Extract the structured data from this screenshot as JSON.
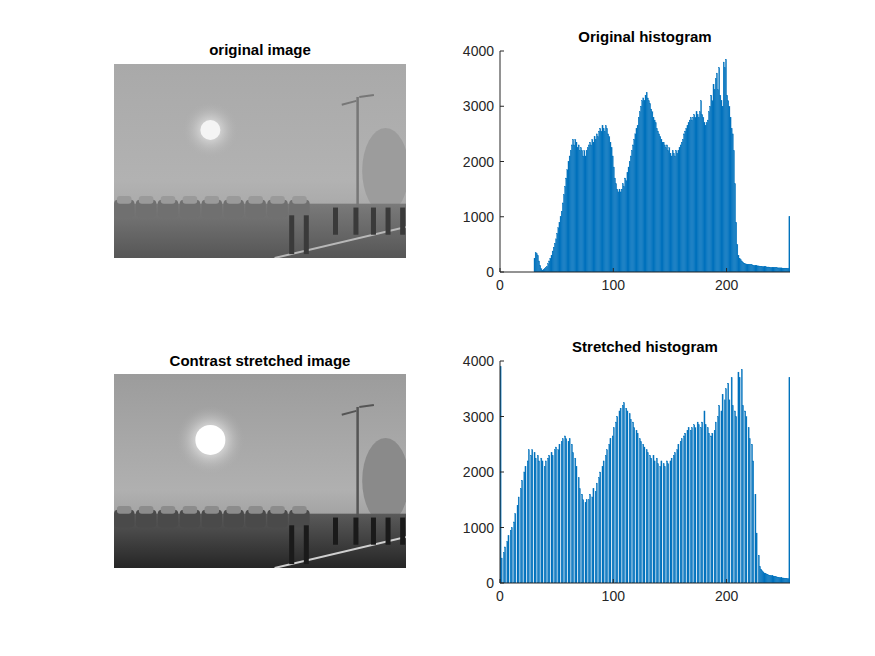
{
  "images": [
    {
      "title": "original image"
    },
    {
      "title": "Contrast stretched image"
    }
  ],
  "chart_data": [
    {
      "type": "histogram",
      "title": "Original histogram",
      "color": "#0072bd",
      "bins": [
        0,
        1,
        2,
        3,
        4,
        5,
        6,
        7,
        8,
        9,
        10,
        11,
        12,
        13,
        14,
        15,
        16,
        17,
        18,
        19,
        20,
        21,
        22,
        23,
        24,
        25,
        26,
        27,
        28,
        29,
        30,
        31,
        32,
        33,
        34,
        35,
        36,
        37,
        38,
        39,
        40,
        41,
        42,
        43,
        44,
        45,
        46,
        47,
        48,
        49,
        50,
        51,
        52,
        53,
        54,
        55,
        56,
        57,
        58,
        59,
        60,
        61,
        62,
        63,
        64,
        65,
        66,
        67,
        68,
        69,
        70,
        71,
        72,
        73,
        74,
        75,
        76,
        77,
        78,
        79,
        80,
        81,
        82,
        83,
        84,
        85,
        86,
        87,
        88,
        89,
        90,
        91,
        92,
        93,
        94,
        95,
        96,
        97,
        98,
        99,
        100,
        101,
        102,
        103,
        104,
        105,
        106,
        107,
        108,
        109,
        110,
        111,
        112,
        113,
        114,
        115,
        116,
        117,
        118,
        119,
        120,
        121,
        122,
        123,
        124,
        125,
        126,
        127,
        128,
        129,
        130,
        131,
        132,
        133,
        134,
        135,
        136,
        137,
        138,
        139,
        140,
        141,
        142,
        143,
        144,
        145,
        146,
        147,
        148,
        149,
        150,
        151,
        152,
        153,
        154,
        155,
        156,
        157,
        158,
        159,
        160,
        161,
        162,
        163,
        164,
        165,
        166,
        167,
        168,
        169,
        170,
        171,
        172,
        173,
        174,
        175,
        176,
        177,
        178,
        179,
        180,
        181,
        182,
        183,
        184,
        185,
        186,
        187,
        188,
        189,
        190,
        191,
        192,
        193,
        194,
        195,
        196,
        197,
        198,
        199,
        200,
        201,
        202,
        203,
        204,
        205,
        206,
        207,
        208,
        209,
        210,
        211,
        212,
        213,
        214,
        215,
        216,
        217,
        218,
        219,
        220,
        221,
        222,
        223,
        224,
        225,
        226,
        227,
        228,
        229,
        230,
        231,
        232,
        233,
        234,
        235,
        236,
        237,
        238,
        239,
        240,
        241,
        242,
        243,
        244,
        245,
        246,
        247,
        248,
        249,
        250,
        251,
        252,
        253,
        254,
        255,
        256
      ],
      "values": [
        0,
        0,
        0,
        0,
        0,
        0,
        0,
        0,
        0,
        0,
        0,
        0,
        0,
        0,
        0,
        0,
        0,
        0,
        0,
        0,
        0,
        0,
        0,
        0,
        0,
        0,
        0,
        0,
        0,
        0,
        250,
        350,
        330,
        300,
        200,
        120,
        60,
        30,
        40,
        60,
        80,
        100,
        150,
        200,
        250,
        300,
        380,
        450,
        520,
        600,
        700,
        800,
        900,
        1000,
        1100,
        1250,
        1400,
        1550,
        1700,
        1850,
        2000,
        2100,
        2200,
        2300,
        2400,
        2300,
        2400,
        2350,
        2250,
        2300,
        2200,
        2250,
        2200,
        2100,
        2200,
        2100,
        2200,
        2250,
        2300,
        2350,
        2300,
        2400,
        2350,
        2450,
        2400,
        2500,
        2450,
        2550,
        2600,
        2550,
        2650,
        2600,
        2550,
        2650,
        2600,
        2500,
        2450,
        2350,
        2250,
        2100,
        1900,
        1700,
        1600,
        1500,
        1450,
        1500,
        1450,
        1500,
        1600,
        1550,
        1700,
        1650,
        1800,
        1900,
        2000,
        2100,
        2200,
        2300,
        2400,
        2500,
        2600,
        2650,
        2800,
        2900,
        3000,
        3100,
        3150,
        3100,
        3200,
        3250,
        3150,
        3100,
        3050,
        2950,
        2900,
        2800,
        2750,
        2700,
        2600,
        2550,
        2500,
        2450,
        2400,
        2350,
        2350,
        2300,
        2250,
        2300,
        2200,
        2250,
        2150,
        2100,
        2200,
        2150,
        2100,
        2200,
        2150,
        2200,
        2250,
        2300,
        2350,
        2400,
        2500,
        2550,
        2600,
        2650,
        2700,
        2750,
        2800,
        2750,
        2800,
        2850,
        2800,
        2900,
        2850,
        2800,
        2900,
        3100,
        2850,
        2800,
        2700,
        2650,
        2700,
        2750,
        2900,
        3000,
        3200,
        3100,
        3400,
        3300,
        3500,
        3600,
        3300,
        3700,
        3200,
        3100,
        3000,
        3800,
        3700,
        3850,
        3200,
        3100,
        3000,
        2800,
        2600,
        2500,
        2200,
        1600,
        900,
        500,
        300,
        250,
        220,
        200,
        180,
        160,
        150,
        145,
        140,
        140,
        135,
        130,
        130,
        125,
        120,
        120,
        115,
        110,
        110,
        105,
        105,
        100,
        100,
        95,
        95,
        90,
        90,
        90,
        85,
        85,
        85,
        80,
        80,
        80,
        80,
        75,
        75,
        75,
        75,
        70,
        70,
        70,
        70,
        70,
        70,
        1000
      ],
      "xlim": [
        0,
        256
      ],
      "ylim": [
        0,
        4000
      ],
      "xticks": [
        0,
        100,
        200
      ],
      "yticks": [
        0,
        1000,
        2000,
        3000,
        4000
      ]
    },
    {
      "type": "histogram",
      "title": "Stretched histogram",
      "color": "#0072bd",
      "bins": [
        0,
        1,
        2,
        3,
        4,
        5,
        6,
        7,
        8,
        9,
        10,
        11,
        12,
        13,
        14,
        15,
        16,
        17,
        18,
        19,
        20,
        21,
        22,
        23,
        24,
        25,
        26,
        27,
        28,
        29,
        30,
        31,
        32,
        33,
        34,
        35,
        36,
        37,
        38,
        39,
        40,
        41,
        42,
        43,
        44,
        45,
        46,
        47,
        48,
        49,
        50,
        51,
        52,
        53,
        54,
        55,
        56,
        57,
        58,
        59,
        60,
        61,
        62,
        63,
        64,
        65,
        66,
        67,
        68,
        69,
        70,
        71,
        72,
        73,
        74,
        75,
        76,
        77,
        78,
        79,
        80,
        81,
        82,
        83,
        84,
        85,
        86,
        87,
        88,
        89,
        90,
        91,
        92,
        93,
        94,
        95,
        96,
        97,
        98,
        99,
        100,
        101,
        102,
        103,
        104,
        105,
        106,
        107,
        108,
        109,
        110,
        111,
        112,
        113,
        114,
        115,
        116,
        117,
        118,
        119,
        120,
        121,
        122,
        123,
        124,
        125,
        126,
        127,
        128,
        129,
        130,
        131,
        132,
        133,
        134,
        135,
        136,
        137,
        138,
        139,
        140,
        141,
        142,
        143,
        144,
        145,
        146,
        147,
        148,
        149,
        150,
        151,
        152,
        153,
        154,
        155,
        156,
        157,
        158,
        159,
        160,
        161,
        162,
        163,
        164,
        165,
        166,
        167,
        168,
        169,
        170,
        171,
        172,
        173,
        174,
        175,
        176,
        177,
        178,
        179,
        180,
        181,
        182,
        183,
        184,
        185,
        186,
        187,
        188,
        189,
        190,
        191,
        192,
        193,
        194,
        195,
        196,
        197,
        198,
        199,
        200,
        201,
        202,
        203,
        204,
        205,
        206,
        207,
        208,
        209,
        210,
        211,
        212,
        213,
        214,
        215,
        216,
        217,
        218,
        219,
        220,
        221,
        222,
        223,
        224,
        225,
        226,
        227,
        228,
        229,
        230,
        231,
        232,
        233,
        234,
        235,
        236,
        237,
        238,
        239,
        240,
        241,
        242,
        243,
        244,
        245,
        246,
        247,
        248,
        249,
        250,
        251,
        252,
        253,
        254,
        255,
        256
      ],
      "values": [
        3900,
        450,
        0,
        550,
        650,
        0,
        750,
        850,
        0,
        950,
        1000,
        0,
        1100,
        1250,
        0,
        1400,
        1550,
        0,
        1700,
        1850,
        0,
        2000,
        2100,
        0,
        2200,
        2400,
        0,
        2300,
        2400,
        0,
        2350,
        2250,
        0,
        2300,
        2200,
        0,
        2250,
        2200,
        0,
        2100,
        2200,
        0,
        2250,
        2300,
        0,
        2350,
        2300,
        0,
        2400,
        2450,
        0,
        2400,
        2500,
        0,
        2550,
        2600,
        0,
        2650,
        2600,
        0,
        2550,
        2600,
        0,
        2500,
        2350,
        0,
        2250,
        2100,
        0,
        1900,
        1700,
        0,
        1600,
        1500,
        0,
        1450,
        1500,
        0,
        1500,
        1600,
        0,
        1550,
        1700,
        0,
        1650,
        1800,
        0,
        1900,
        2000,
        0,
        2100,
        2200,
        0,
        2300,
        2400,
        0,
        2500,
        2600,
        0,
        2650,
        2800,
        0,
        2900,
        3000,
        0,
        3100,
        3150,
        0,
        3200,
        3250,
        0,
        3150,
        3100,
        0,
        3050,
        2950,
        0,
        2900,
        2800,
        0,
        2750,
        2700,
        0,
        2600,
        2550,
        0,
        2500,
        2450,
        0,
        2400,
        2350,
        0,
        2300,
        2250,
        0,
        2300,
        2200,
        0,
        2250,
        2150,
        0,
        2100,
        2200,
        0,
        2150,
        2100,
        0,
        2200,
        2150,
        0,
        2200,
        2250,
        0,
        2300,
        2350,
        0,
        2400,
        2500,
        0,
        2550,
        2600,
        0,
        2650,
        2700,
        0,
        2750,
        2800,
        0,
        2750,
        2800,
        0,
        2850,
        2800,
        0,
        2900,
        2850,
        0,
        2800,
        2900,
        0,
        3100,
        2850,
        0,
        2800,
        2700,
        0,
        2650,
        2700,
        0,
        2750,
        2900,
        0,
        3000,
        3200,
        0,
        3100,
        3400,
        0,
        3300,
        3500,
        0,
        3600,
        3300,
        0,
        3700,
        3200,
        0,
        3100,
        3000,
        0,
        3800,
        3700,
        0,
        3850,
        3200,
        0,
        3100,
        3000,
        0,
        2800,
        2600,
        0,
        2500,
        2200,
        0,
        1600,
        900,
        0,
        500,
        300,
        250,
        220,
        200,
        180,
        170,
        160,
        150,
        140,
        140,
        135,
        130,
        125,
        120,
        115,
        110,
        105,
        100,
        100,
        95,
        90,
        90,
        85,
        85,
        80,
        80,
        3700
      ],
      "xlim": [
        0,
        256
      ],
      "ylim": [
        0,
        4000
      ],
      "xticks": [
        0,
        100,
        200
      ],
      "yticks": [
        0,
        1000,
        2000,
        3000,
        4000
      ]
    }
  ]
}
